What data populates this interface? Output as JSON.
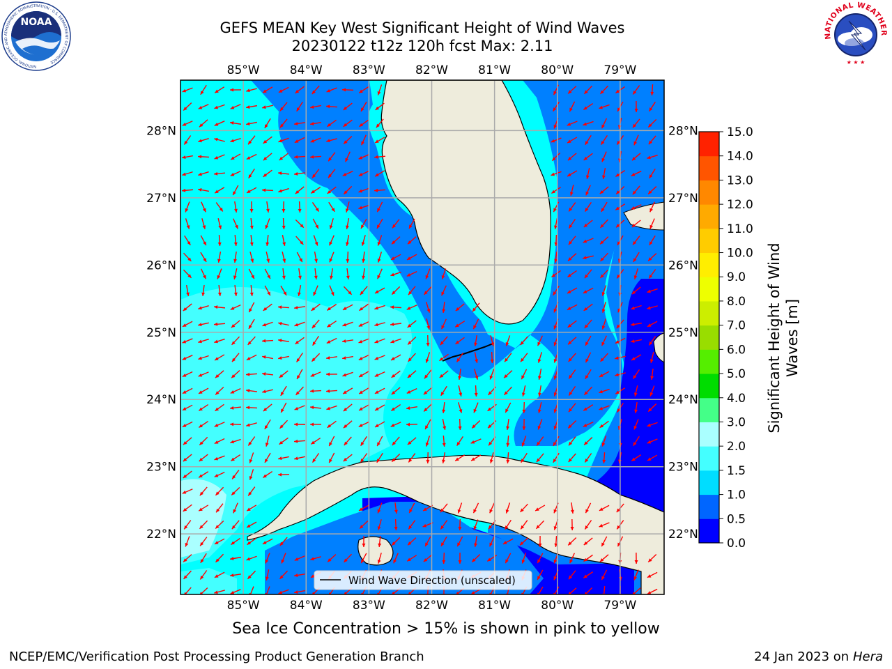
{
  "title": {
    "line1": "GEFS MEAN Key West Significant Height of Wind Waves",
    "line2": "20230122 t12z 120h fcst   Max: 2.11"
  },
  "logos": {
    "left": {
      "name": "noaa-logo",
      "text": "NOAA",
      "ring_text": "NATIONAL OCEANIC AND ATMOSPHERIC ADMINISTRATION · U.S. DEPARTMENT OF COMMERCE"
    },
    "right": {
      "name": "nws-logo",
      "ring_text": "NATIONAL WEATHER SERVICE"
    }
  },
  "map": {
    "lon_ticks": [
      "85°W",
      "84°W",
      "83°W",
      "82°W",
      "81°W",
      "80°W",
      "79°W"
    ],
    "lat_ticks": [
      "28°N",
      "27°N",
      "26°N",
      "25°N",
      "24°N",
      "23°N",
      "22°N"
    ],
    "lon_values": [
      -85,
      -84,
      -83,
      -82,
      -81,
      -80,
      -79
    ],
    "lat_values": [
      28,
      27,
      26,
      25,
      24,
      23,
      22
    ],
    "extent": {
      "lon": [
        -86,
        -78.3
      ],
      "lat": [
        21.1,
        28.75
      ]
    },
    "legend_label": "Wind Wave Direction (unscaled)",
    "land_color": "#eeecdc",
    "arrow_color": "#ff0000"
  },
  "colorbar": {
    "label": "Significant Height of Wind Waves [m]",
    "label_line1": "Significant Height of Wind",
    "label_line2": "Waves [m]",
    "tick_labels": [
      "0.0",
      "0.5",
      "1.0",
      "1.5",
      "2.0",
      "3.0",
      "4.0",
      "5.0",
      "6.0",
      "7.0",
      "8.0",
      "9.0",
      "10.0",
      "11.0",
      "12.0",
      "13.0",
      "14.0",
      "15.0"
    ],
    "colors": [
      "#0000ff",
      "#0066ff",
      "#00ddff",
      "#44ffff",
      "#aaffff",
      "#44ff88",
      "#00dd00",
      "#55ee00",
      "#99dd00",
      "#ccee00",
      "#eeff00",
      "#ffee00",
      "#ffcc00",
      "#ffaa00",
      "#ff8800",
      "#ff5500",
      "#ff2200"
    ]
  },
  "note": "Sea Ice Concentration > 15% is shown in pink to yellow",
  "footer": {
    "left": "NCEP/EMC/Verification Post Processing Product Generation Branch",
    "right_date": "24 Jan 2023 on ",
    "right_host": "Hera"
  }
}
